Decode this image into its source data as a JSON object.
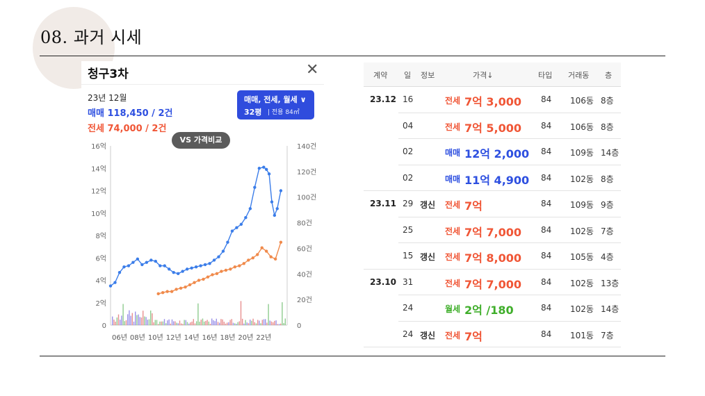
{
  "slide": {
    "title": "08. 과거 시세"
  },
  "panel": {
    "apartment": "청구3차",
    "period": "23년 12월",
    "sale_summary": "매매 118,450 / 2건",
    "jeonse_summary": "전세 74,000 / 2건",
    "filter_types": "매매, 전세, 월세 ∨",
    "filter_size": "32평",
    "filter_area": "| 전용 84㎡",
    "compare_button": "VS 가격비교",
    "close_icon": "close-icon"
  },
  "chart_data": {
    "type": "line",
    "x_ticks": [
      "06년",
      "08년",
      "10년",
      "12년",
      "14년",
      "16년",
      "18년",
      "20년",
      "22년"
    ],
    "y_left_label_ticks": [
      "0",
      "2억",
      "4억",
      "6억",
      "8억",
      "10억",
      "12억",
      "14억",
      "16억"
    ],
    "y_right_label_ticks": [
      "0",
      "20건",
      "40건",
      "60건",
      "80건",
      "100건",
      "120건",
      "140건"
    ],
    "ylim_left": [
      0,
      16
    ],
    "ylim_right": [
      0,
      140
    ],
    "series": [
      {
        "name": "매매",
        "color": "#3b7de9",
        "x": [
          2005.0,
          2005.5,
          2006.0,
          2006.5,
          2007.0,
          2007.5,
          2008.0,
          2008.5,
          2009.0,
          2009.5,
          2010.0,
          2010.5,
          2011.0,
          2011.5,
          2012.0,
          2012.5,
          2013.0,
          2013.5,
          2014.0,
          2014.5,
          2015.0,
          2015.5,
          2016.0,
          2016.5,
          2017.0,
          2017.5,
          2018.0,
          2018.5,
          2019.0,
          2019.5,
          2020.0,
          2020.5,
          2021.0,
          2021.5,
          2022.0,
          2022.3,
          2022.6,
          2022.9,
          2023.2,
          2023.5,
          2023.9
        ],
        "y": [
          3.5,
          3.8,
          4.7,
          5.2,
          5.3,
          5.6,
          5.9,
          5.4,
          5.6,
          5.8,
          5.7,
          5.3,
          5.3,
          5.0,
          4.7,
          4.6,
          4.8,
          5.0,
          5.1,
          5.2,
          5.3,
          5.4,
          5.5,
          5.8,
          6.1,
          6.6,
          7.4,
          8.4,
          8.7,
          9.0,
          9.6,
          10.4,
          12.3,
          14.0,
          14.1,
          13.9,
          13.5,
          11.0,
          9.8,
          10.4,
          12.0
        ]
      },
      {
        "name": "전세",
        "color": "#f08a4b",
        "x": [
          2010.3,
          2010.8,
          2011.3,
          2011.8,
          2012.3,
          2012.8,
          2013.3,
          2013.8,
          2014.3,
          2014.8,
          2015.3,
          2015.8,
          2016.3,
          2016.8,
          2017.3,
          2017.8,
          2018.3,
          2018.8,
          2019.3,
          2019.8,
          2020.3,
          2020.8,
          2021.3,
          2021.8,
          2022.3,
          2022.8,
          2023.3,
          2023.9
        ],
        "y": [
          2.8,
          2.9,
          3.0,
          3.0,
          3.2,
          3.3,
          3.4,
          3.6,
          3.8,
          4.0,
          4.1,
          4.3,
          4.5,
          4.6,
          4.8,
          4.9,
          5.0,
          5.2,
          5.3,
          5.5,
          5.8,
          6.0,
          6.3,
          6.9,
          6.6,
          6.1,
          5.9,
          7.4
        ]
      }
    ]
  },
  "table": {
    "headers": {
      "contract": "계약",
      "day": "일",
      "info": "정보",
      "price": "가격↓",
      "type": "타입",
      "dong": "거래동",
      "floor": "층"
    },
    "rows": [
      {
        "ym": "23.12",
        "day": "16",
        "info": "",
        "kind": "전세",
        "price": "7억 3,000",
        "area": "84",
        "dong": "106동",
        "floor": "8층"
      },
      {
        "ym": "",
        "day": "04",
        "info": "",
        "kind": "전세",
        "price": "7억 5,000",
        "area": "84",
        "dong": "106동",
        "floor": "8층"
      },
      {
        "ym": "",
        "day": "02",
        "info": "",
        "kind": "매매",
        "price": "12억 2,000",
        "area": "84",
        "dong": "109동",
        "floor": "14층"
      },
      {
        "ym": "",
        "day": "02",
        "info": "",
        "kind": "매매",
        "price": "11억 4,900",
        "area": "84",
        "dong": "102동",
        "floor": "8층"
      },
      {
        "ym": "23.11",
        "day": "29",
        "info": "갱신",
        "kind": "전세",
        "price": "7억",
        "area": "84",
        "dong": "109동",
        "floor": "9층"
      },
      {
        "ym": "",
        "day": "25",
        "info": "",
        "kind": "전세",
        "price": "7억 7,000",
        "area": "84",
        "dong": "102동",
        "floor": "7층"
      },
      {
        "ym": "",
        "day": "15",
        "info": "갱신",
        "kind": "전세",
        "price": "7억 8,000",
        "area": "84",
        "dong": "105동",
        "floor": "4층"
      },
      {
        "ym": "23.10",
        "day": "31",
        "info": "",
        "kind": "전세",
        "price": "7억 7,000",
        "area": "84",
        "dong": "102동",
        "floor": "13층"
      },
      {
        "ym": "",
        "day": "24",
        "info": "",
        "kind": "월세",
        "price": "2억 /180",
        "area": "84",
        "dong": "102동",
        "floor": "14층"
      },
      {
        "ym": "",
        "day": "24",
        "info": "갱신",
        "kind": "전세",
        "price": "7억",
        "area": "84",
        "dong": "101동",
        "floor": "7층"
      }
    ]
  }
}
